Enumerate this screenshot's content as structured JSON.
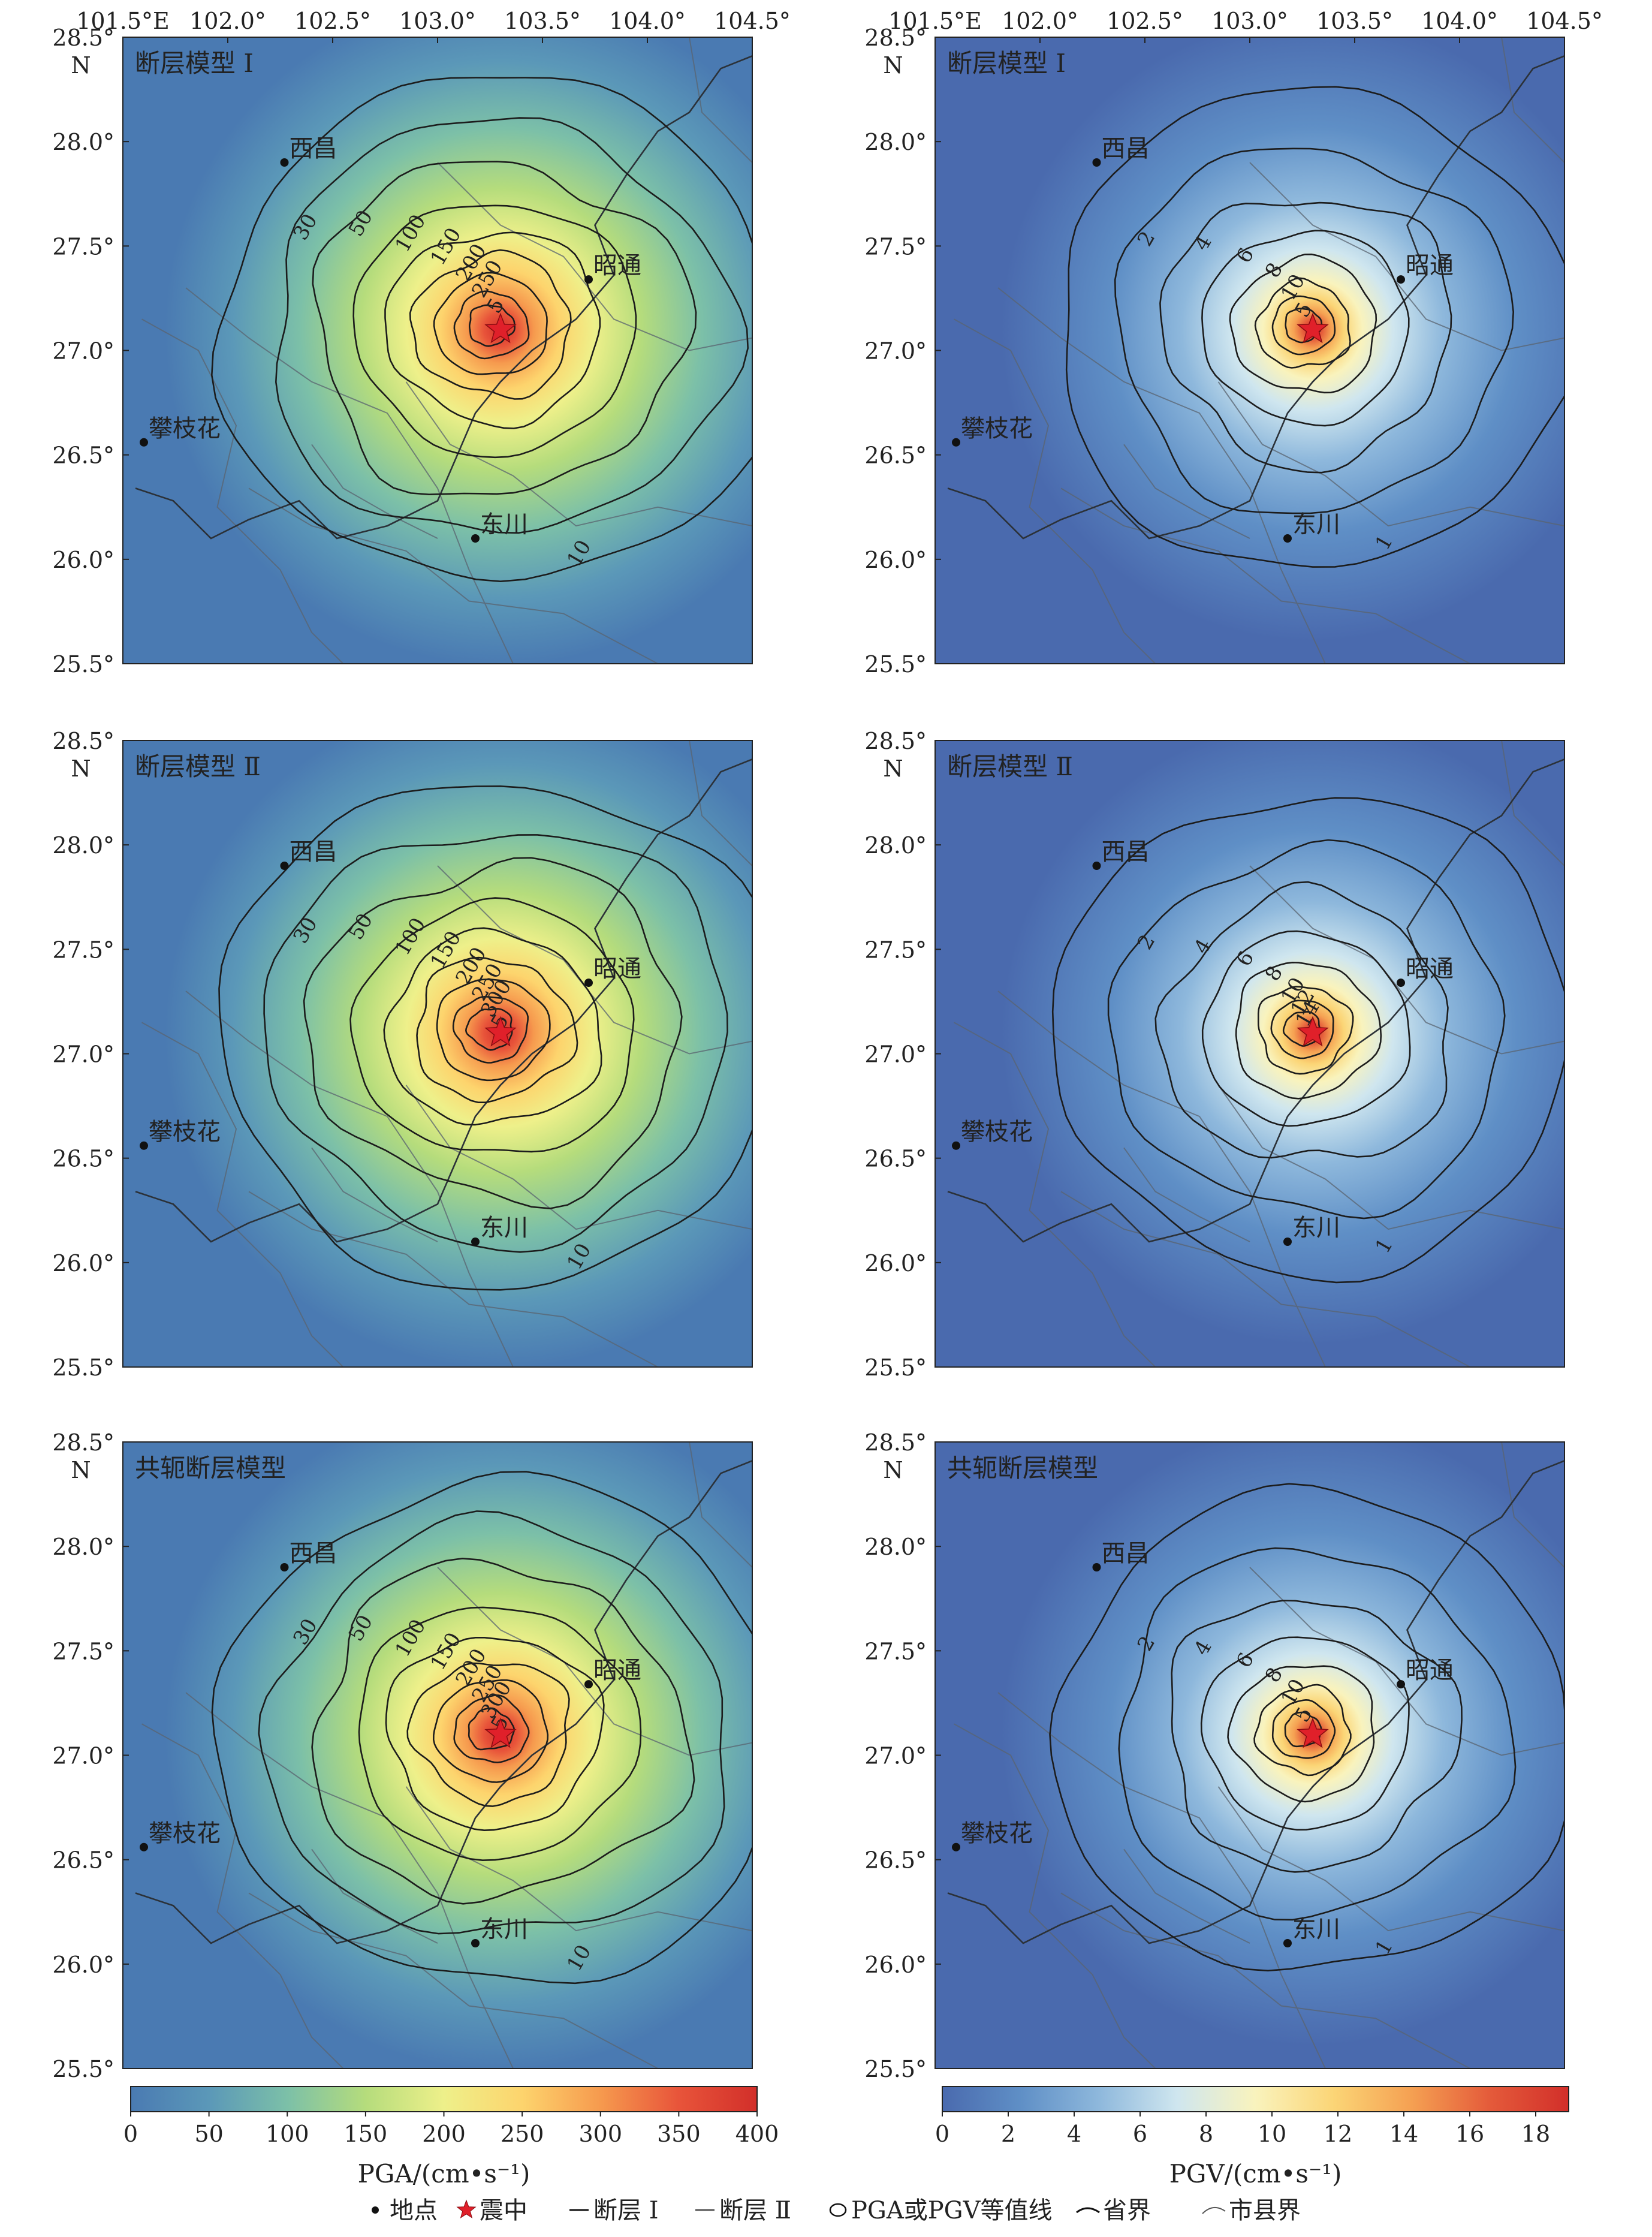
{
  "lon_ticks": [
    "101.5°E",
    "102.0°",
    "102.5°",
    "103.0°",
    "103.5°",
    "104.0°",
    "104.5°"
  ],
  "lat_ticks": [
    "28.5°",
    "28.0°",
    "27.5°",
    "27.0°",
    "26.5°",
    "26.0°",
    "25.5°"
  ],
  "lat_unit": "N",
  "panels": [
    {
      "id": "pga-fault-1",
      "title": "断层模型 Ⅰ",
      "metric": "PGA",
      "contours": [
        "10",
        "30",
        "50",
        "100",
        "150",
        "200",
        "250",
        "5"
      ]
    },
    {
      "id": "pgv-fault-1",
      "title": "断层模型 Ⅰ",
      "metric": "PGV",
      "contours": [
        "1",
        "2",
        "4",
        "6",
        "8",
        "10",
        "5"
      ]
    },
    {
      "id": "pga-fault-2",
      "title": "断层模型 Ⅱ",
      "metric": "PGA",
      "contours": [
        "10",
        "30",
        "50",
        "100",
        "150",
        "200",
        "250",
        "300",
        "5"
      ]
    },
    {
      "id": "pgv-fault-2",
      "title": "断层模型 Ⅱ",
      "metric": "PGV",
      "contours": [
        "1",
        "2",
        "4",
        "6",
        "8",
        "10",
        "12",
        "14",
        "5"
      ]
    },
    {
      "id": "pga-conj",
      "title": "共轭断层模型",
      "metric": "PGA",
      "contours": [
        "10",
        "30",
        "50",
        "100",
        "150",
        "200",
        "250",
        "300",
        "5"
      ]
    },
    {
      "id": "pgv-conj",
      "title": "共轭断层模型",
      "metric": "PGV",
      "contours": [
        "1",
        "2",
        "4",
        "6",
        "8",
        "10",
        "5"
      ]
    }
  ],
  "places": [
    {
      "name": "西昌",
      "lon": 102.27,
      "lat": 27.9
    },
    {
      "name": "昭通",
      "lon": 103.72,
      "lat": 27.34
    },
    {
      "name": "攀枝花",
      "lon": 101.6,
      "lat": 26.56
    },
    {
      "name": "东川",
      "lon": 103.18,
      "lat": 26.1
    }
  ],
  "epicenter": {
    "lon": 103.3,
    "lat": 27.1
  },
  "colorbars": [
    {
      "id": "pga",
      "label": "PGA/(cm•s⁻¹)",
      "ticks": [
        "0",
        "50",
        "100",
        "150",
        "200",
        "250",
        "300",
        "350",
        "400"
      ],
      "min": 0,
      "max": 400
    },
    {
      "id": "pgv",
      "label": "PGV/(cm•s⁻¹)",
      "ticks": [
        "0",
        "2",
        "4",
        "6",
        "8",
        "10",
        "12",
        "14",
        "16",
        "18"
      ],
      "min": 0,
      "max": 19
    }
  ],
  "colors": {
    "pga_ramp": [
      "#4a7ab2",
      "#5b98b8",
      "#7cc0a8",
      "#b5dc7c",
      "#eef08a",
      "#fdd46d",
      "#f69a4e",
      "#e8543a",
      "#d22f2a"
    ],
    "pgv_ramp": [
      "#4a6aae",
      "#5f8fc6",
      "#8eb8dc",
      "#cfe6ef",
      "#f9f3bd",
      "#fbd576",
      "#f5a052",
      "#e45a3a",
      "#d22f2a"
    ],
    "epicenter": "#e0202a"
  },
  "legend": {
    "place": "地点",
    "epicenter": "震中",
    "fault1": "断层 Ⅰ",
    "fault2": "断层 Ⅱ",
    "contour": "PGA或PGV等值线",
    "province": "省界",
    "county": "市县界"
  }
}
